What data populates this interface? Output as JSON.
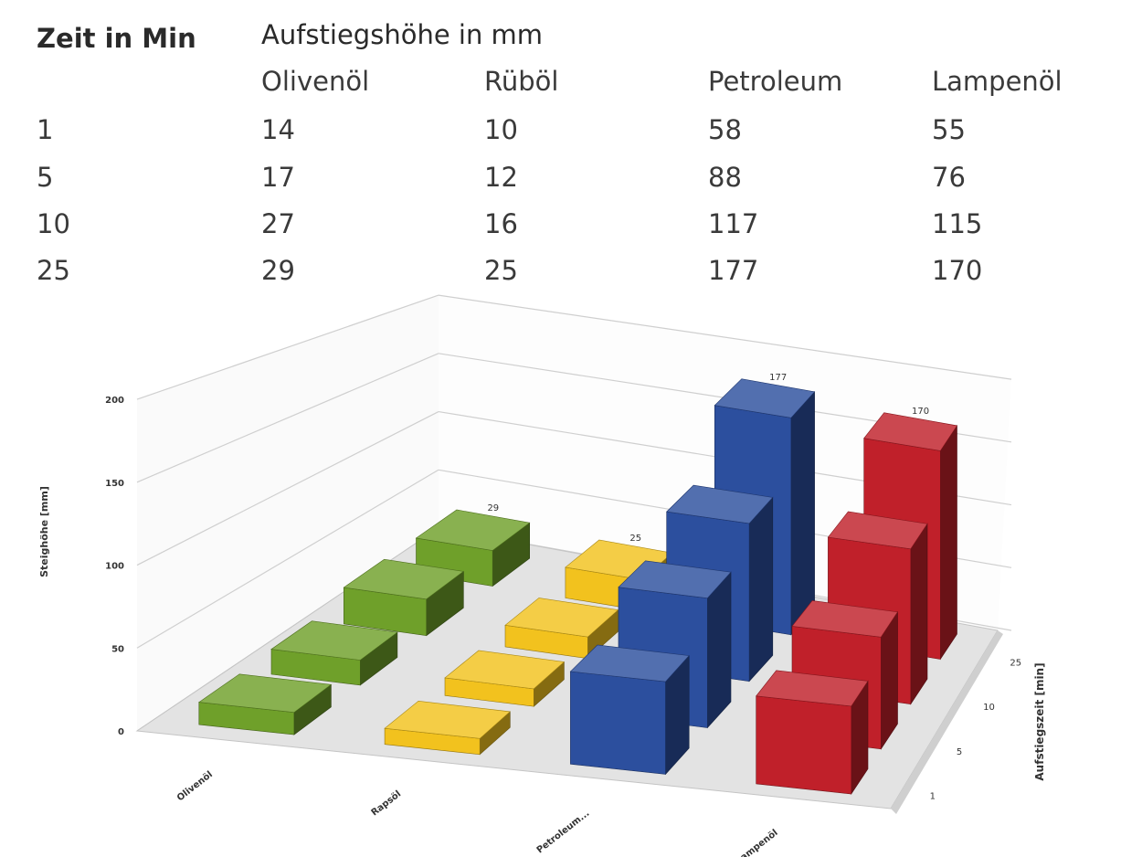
{
  "table": {
    "time_header": "Zeit in Min",
    "height_header": "Aufstiegshöhe in mm",
    "oil_columns": [
      "Olivenöl",
      "Rüböl",
      "Petroleum",
      "Lampenöl"
    ],
    "rows": [
      {
        "time": "1",
        "values": [
          "14",
          "10",
          "58",
          "55"
        ]
      },
      {
        "time": "5",
        "values": [
          "17",
          "12",
          "88",
          "76"
        ]
      },
      {
        "time": "10",
        "values": [
          "27",
          "16",
          "117",
          "115"
        ]
      },
      {
        "time": "25",
        "values": [
          "29",
          "25",
          "177",
          "170"
        ]
      }
    ]
  },
  "chart_data": {
    "type": "bar",
    "categories": [
      "Olivenöl",
      "Rapsöl",
      "Petroleum...",
      "Lampenöl"
    ],
    "depth_categories": [
      "1",
      "5",
      "10",
      "25"
    ],
    "series": [
      {
        "values": [
          14,
          17,
          27,
          29
        ],
        "color": "#6fa02a"
      },
      {
        "values": [
          10,
          12,
          16,
          25
        ],
        "color": "#f2c21e"
      },
      {
        "values": [
          58,
          88,
          117,
          177
        ],
        "color": "#2c4f9e"
      },
      {
        "values": [
          55,
          76,
          115,
          170
        ],
        "color": "#c0202a"
      }
    ],
    "data_labels": [
      "29",
      "25",
      "177",
      "170"
    ],
    "ylabel": "Steighöhe [mm]",
    "zlabel": "Aufstiegszeit [min]",
    "yticks": [
      "0",
      "50",
      "100",
      "150",
      "200"
    ],
    "ylim": [
      0,
      200
    ],
    "grid": true
  }
}
